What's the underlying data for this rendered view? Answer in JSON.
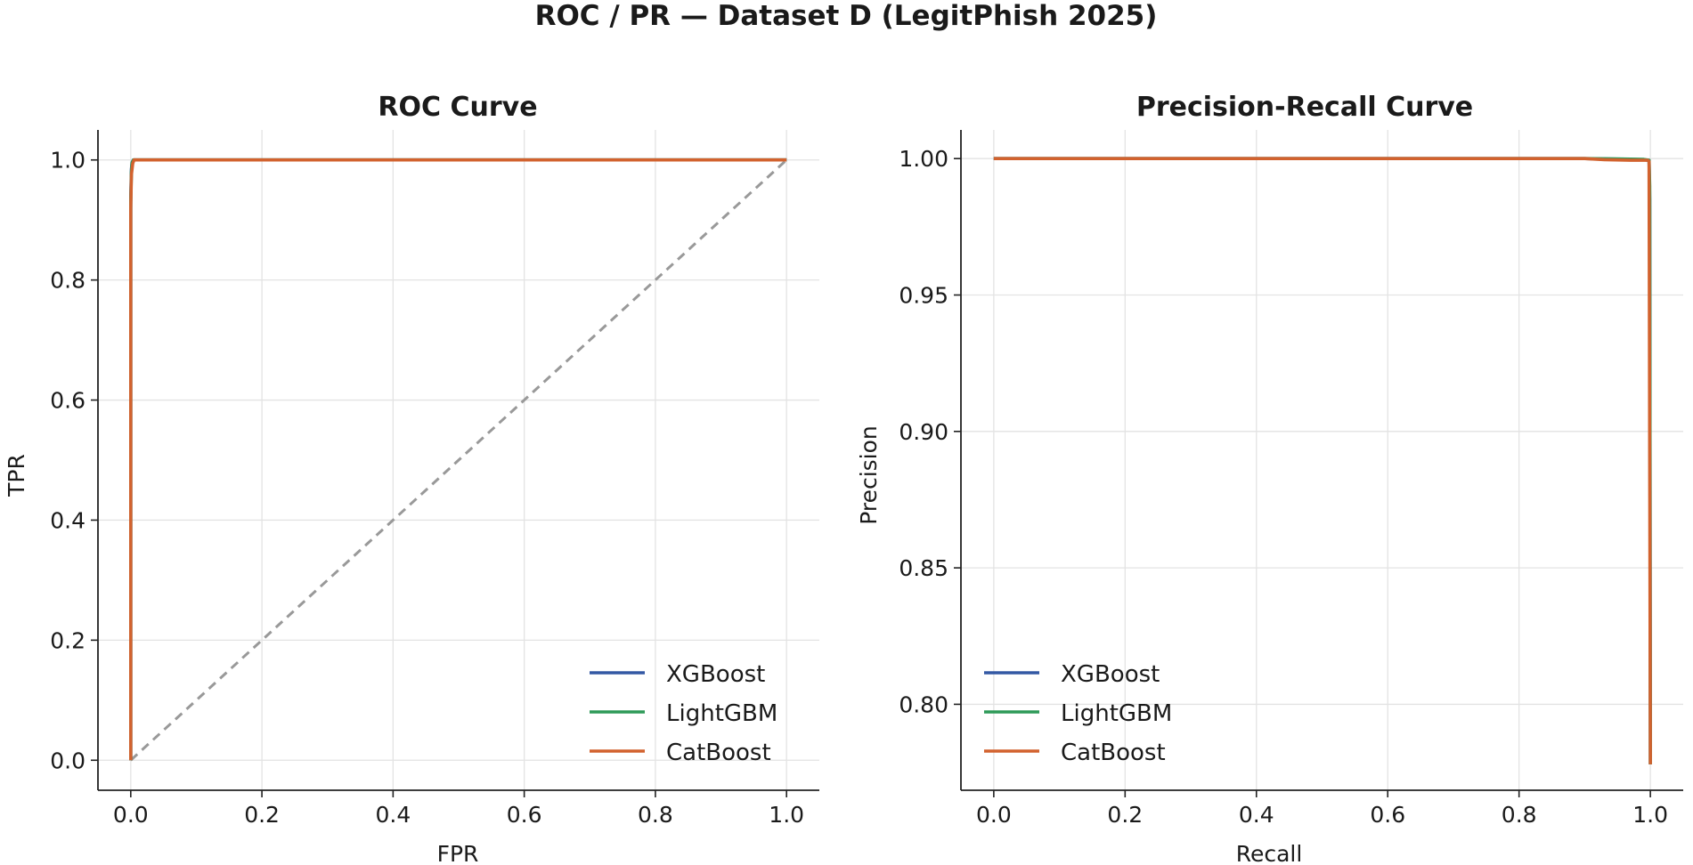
{
  "figure_title": "ROC / PR — Dataset D (LegitPhish 2025)",
  "colors": {
    "XGBoost": "#3358a4",
    "LightGBM": "#2e9a58",
    "CatBoost": "#d2622e",
    "chance_line": "#999999"
  },
  "chart_data": [
    {
      "type": "line",
      "title": "ROC Curve",
      "xlabel": "FPR",
      "ylabel": "TPR",
      "xlim": [
        -0.05,
        1.05
      ],
      "ylim": [
        -0.05,
        1.05
      ],
      "xticks": [
        0.0,
        0.2,
        0.4,
        0.6,
        0.8,
        1.0
      ],
      "yticks": [
        0.0,
        0.2,
        0.4,
        0.6,
        0.8,
        1.0
      ],
      "xtick_labels": [
        "0.0",
        "0.2",
        "0.4",
        "0.6",
        "0.8",
        "1.0"
      ],
      "ytick_labels": [
        "0.0",
        "0.2",
        "0.4",
        "0.6",
        "0.8",
        "1.0"
      ],
      "grid": true,
      "legend_position": "lower-right",
      "series": [
        {
          "name": "XGBoost",
          "x": [
            0.0,
            0.0,
            0.001,
            0.002,
            0.004,
            1.0
          ],
          "y": [
            0.0,
            0.94,
            0.985,
            0.996,
            1.0,
            1.0
          ]
        },
        {
          "name": "LightGBM",
          "x": [
            0.0,
            0.0,
            0.001,
            0.002,
            0.004,
            1.0
          ],
          "y": [
            0.0,
            0.93,
            0.98,
            0.995,
            1.0,
            1.0
          ]
        },
        {
          "name": "CatBoost",
          "x": [
            0.0,
            0.0,
            0.001,
            0.003,
            0.005,
            1.0
          ],
          "y": [
            0.0,
            0.92,
            0.975,
            0.994,
            1.0,
            1.0
          ]
        }
      ],
      "reference_line": {
        "x": [
          0.0,
          1.0
        ],
        "y": [
          0.0,
          1.0
        ],
        "style": "dashed"
      }
    },
    {
      "type": "line",
      "title": "Precision-Recall Curve",
      "xlabel": "Recall",
      "ylabel": "Precision",
      "xlim": [
        -0.05,
        1.05
      ],
      "ylim": [
        0.7685,
        1.0105
      ],
      "xticks": [
        0.0,
        0.2,
        0.4,
        0.6,
        0.8,
        1.0
      ],
      "yticks": [
        0.8,
        0.85,
        0.9,
        0.95,
        1.0
      ],
      "xtick_labels": [
        "0.0",
        "0.2",
        "0.4",
        "0.6",
        "0.8",
        "1.0"
      ],
      "ytick_labels": [
        "0.80",
        "0.85",
        "0.90",
        "0.95",
        "1.00"
      ],
      "grid": true,
      "legend_position": "lower-left",
      "series": [
        {
          "name": "XGBoost",
          "x": [
            0.0,
            0.9,
            0.95,
            0.99,
            0.998,
            0.999,
            1.0
          ],
          "y": [
            1.0,
            1.0,
            0.9998,
            0.9996,
            0.9993,
            0.985,
            0.778
          ]
        },
        {
          "name": "LightGBM",
          "x": [
            0.0,
            0.9,
            0.95,
            0.99,
            0.998,
            0.999,
            1.0
          ],
          "y": [
            1.0,
            1.0,
            0.9999,
            0.9997,
            0.9994,
            0.99,
            0.778
          ]
        },
        {
          "name": "CatBoost",
          "x": [
            0.0,
            0.9,
            0.93,
            0.97,
            0.996,
            0.998,
            1.0
          ],
          "y": [
            1.0,
            1.0,
            0.9996,
            0.9994,
            0.9994,
            0.999,
            0.778
          ]
        }
      ]
    }
  ]
}
